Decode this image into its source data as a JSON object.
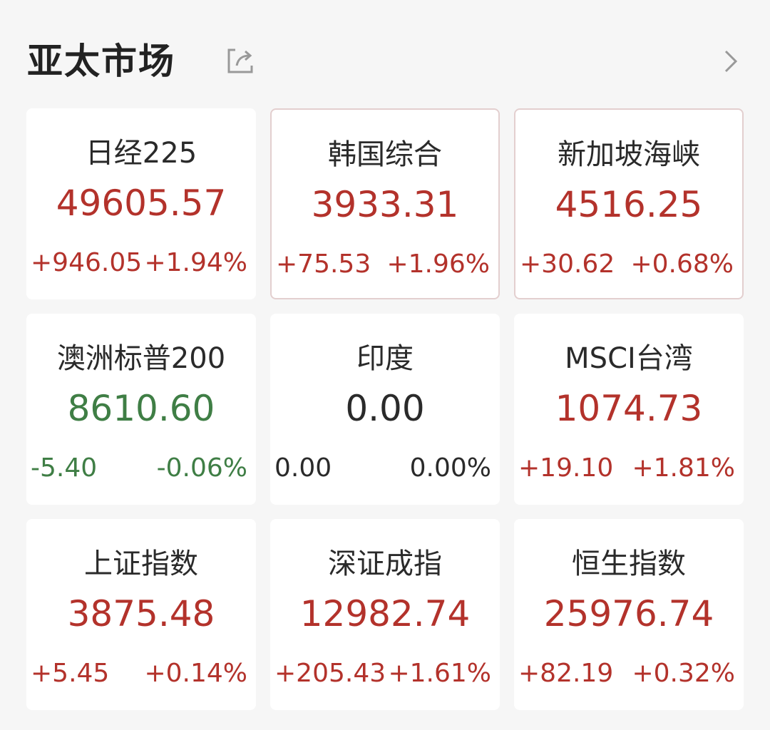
{
  "header": {
    "title": "亚太市场",
    "share_icon": "share-icon",
    "more_icon": "chevron-right-icon"
  },
  "colors": {
    "up": "#b3322b",
    "down": "#3f7e45",
    "flat": "#2a2a2a"
  },
  "markets": [
    {
      "name": "日经225",
      "value": "49605.57",
      "change": "+946.05",
      "pct": "+1.94%",
      "trend": "up",
      "highlight": false
    },
    {
      "name": "韩国综合",
      "value": "3933.31",
      "change": "+75.53",
      "pct": "+1.96%",
      "trend": "up",
      "highlight": true
    },
    {
      "name": "新加坡海峡",
      "value": "4516.25",
      "change": "+30.62",
      "pct": "+0.68%",
      "trend": "up",
      "highlight": true
    },
    {
      "name": "澳洲标普200",
      "value": "8610.60",
      "change": "-5.40",
      "pct": "-0.06%",
      "trend": "down",
      "highlight": false
    },
    {
      "name": "印度",
      "value": "0.00",
      "change": "0.00",
      "pct": "0.00%",
      "trend": "flat",
      "highlight": false
    },
    {
      "name": "MSCI台湾",
      "value": "1074.73",
      "change": "+19.10",
      "pct": "+1.81%",
      "trend": "up",
      "highlight": false
    },
    {
      "name": "上证指数",
      "value": "3875.48",
      "change": "+5.45",
      "pct": "+0.14%",
      "trend": "up",
      "highlight": false
    },
    {
      "name": "深证成指",
      "value": "12982.74",
      "change": "+205.43",
      "pct": "+1.61%",
      "trend": "up",
      "highlight": false
    },
    {
      "name": "恒生指数",
      "value": "25976.74",
      "change": "+82.19",
      "pct": "+0.32%",
      "trend": "up",
      "highlight": false
    }
  ]
}
